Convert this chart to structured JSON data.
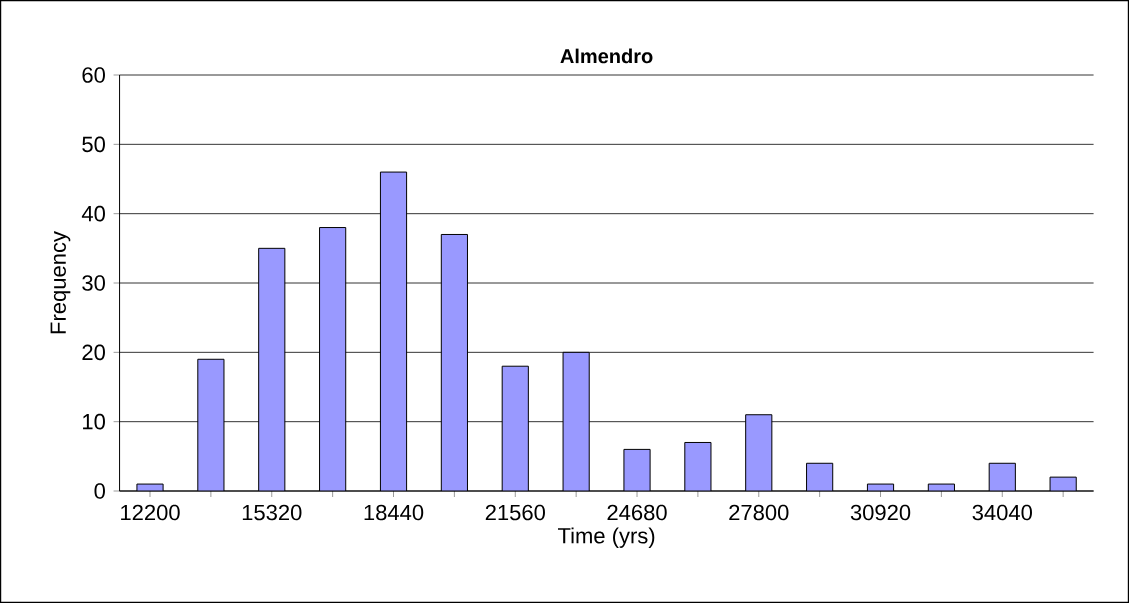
{
  "chart_data": {
    "type": "bar",
    "title": "Almendro",
    "xlabel": "Time (yrs)",
    "ylabel": "Frequency",
    "categories": [
      "12200",
      null,
      "15320",
      null,
      "18440",
      null,
      "21560",
      null,
      "24680",
      null,
      "27800",
      null,
      "30920",
      null,
      "34040",
      null
    ],
    "values": [
      1,
      19,
      35,
      38,
      46,
      37,
      18,
      20,
      6,
      7,
      11,
      4,
      1,
      1,
      4,
      2
    ],
    "color": "#9999ff",
    "ylim": [
      0,
      60
    ],
    "yticks": [
      0,
      10,
      20,
      30,
      40,
      50,
      60
    ],
    "grid": "y"
  }
}
